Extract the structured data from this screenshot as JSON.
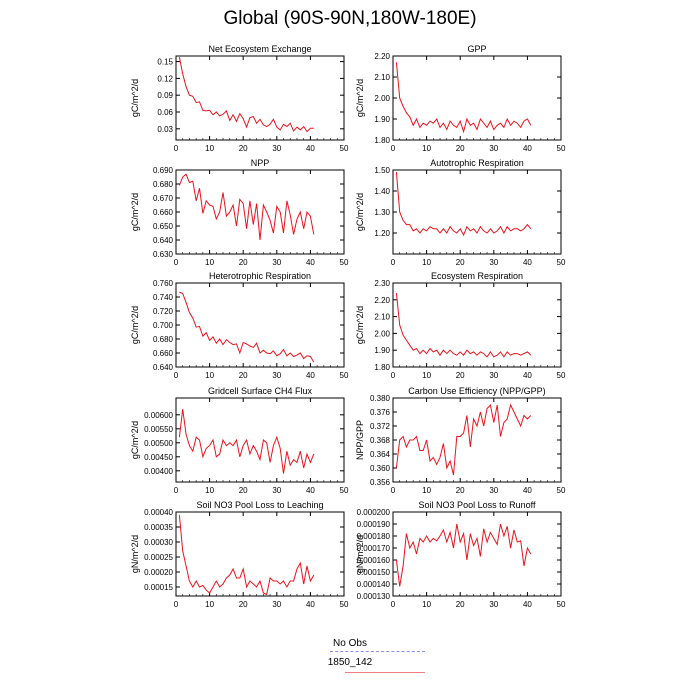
{
  "figure": {
    "title": "Global (90S-90N,180W-180E)",
    "series_color": "#e8141b",
    "obs_color": "#8a8ef0"
  },
  "legend": {
    "obs_label": "No Obs",
    "model_label": "1850_142"
  },
  "chart_data": [
    {
      "type": "line",
      "title": "Net Ecosystem Exchange",
      "ylabel": "gC/m^2/d",
      "xlim": [
        0,
        50
      ],
      "xticks": [
        0,
        10,
        20,
        30,
        40,
        50
      ],
      "ylim": [
        0.01,
        0.16
      ],
      "yticks": [
        0.03,
        0.06,
        0.09,
        0.12,
        0.15
      ],
      "ytick_labels": [
        "0.03",
        "0.06",
        "0.09",
        "0.12",
        "0.15"
      ],
      "x": [
        1,
        2,
        3,
        4,
        5,
        6,
        7,
        8,
        9,
        10,
        11,
        12,
        13,
        14,
        15,
        16,
        17,
        18,
        19,
        20,
        21,
        22,
        23,
        24,
        25,
        26,
        27,
        28,
        29,
        30,
        31,
        32,
        33,
        34,
        35,
        36,
        37,
        38,
        39,
        40,
        41
      ],
      "series": [
        {
          "values": [
            0.158,
            0.128,
            0.105,
            0.09,
            0.088,
            0.077,
            0.078,
            0.063,
            0.062,
            0.063,
            0.055,
            0.06,
            0.053,
            0.056,
            0.062,
            0.045,
            0.055,
            0.043,
            0.057,
            0.048,
            0.033,
            0.05,
            0.052,
            0.04,
            0.047,
            0.037,
            0.034,
            0.038,
            0.047,
            0.033,
            0.028,
            0.038,
            0.034,
            0.04,
            0.026,
            0.033,
            0.028,
            0.034,
            0.025,
            0.031,
            0.031
          ]
        }
      ]
    },
    {
      "type": "line",
      "title": "GPP",
      "ylabel": "gC/m^2/d",
      "xlim": [
        0,
        50
      ],
      "xticks": [
        0,
        10,
        20,
        30,
        40,
        50
      ],
      "ylim": [
        1.8,
        2.2
      ],
      "yticks": [
        1.8,
        1.9,
        2.0,
        2.1,
        2.2
      ],
      "ytick_labels": [
        "1.80",
        "1.90",
        "2.00",
        "2.10",
        "2.20"
      ],
      "x": [
        1,
        2,
        3,
        4,
        5,
        6,
        7,
        8,
        9,
        10,
        11,
        12,
        13,
        14,
        15,
        16,
        17,
        18,
        19,
        20,
        21,
        22,
        23,
        24,
        25,
        26,
        27,
        28,
        29,
        30,
        31,
        32,
        33,
        34,
        35,
        36,
        37,
        38,
        39,
        40,
        41
      ],
      "series": [
        {
          "values": [
            2.17,
            2.0,
            1.96,
            1.93,
            1.91,
            1.87,
            1.9,
            1.86,
            1.88,
            1.87,
            1.89,
            1.88,
            1.9,
            1.86,
            1.88,
            1.85,
            1.89,
            1.87,
            1.86,
            1.89,
            1.84,
            1.9,
            1.87,
            1.88,
            1.85,
            1.9,
            1.88,
            1.86,
            1.89,
            1.85,
            1.87,
            1.88,
            1.86,
            1.9,
            1.87,
            1.89,
            1.88,
            1.86,
            1.89,
            1.9,
            1.87
          ]
        }
      ]
    },
    {
      "type": "line",
      "title": "NPP",
      "ylabel": "gC/m^2/d",
      "xlim": [
        0,
        50
      ],
      "xticks": [
        0,
        10,
        20,
        30,
        40,
        50
      ],
      "ylim": [
        0.63,
        0.69
      ],
      "yticks": [
        0.63,
        0.64,
        0.65,
        0.66,
        0.67,
        0.68,
        0.69
      ],
      "ytick_labels": [
        "0.630",
        "0.640",
        "0.650",
        "0.660",
        "0.670",
        "0.680",
        "0.690"
      ],
      "x": [
        1,
        2,
        3,
        4,
        5,
        6,
        7,
        8,
        9,
        10,
        11,
        12,
        13,
        14,
        15,
        16,
        17,
        18,
        19,
        20,
        21,
        22,
        23,
        24,
        25,
        26,
        27,
        28,
        29,
        30,
        31,
        32,
        33,
        34,
        35,
        36,
        37,
        38,
        39,
        40,
        41
      ],
      "series": [
        {
          "values": [
            0.679,
            0.685,
            0.687,
            0.681,
            0.682,
            0.668,
            0.677,
            0.659,
            0.668,
            0.665,
            0.664,
            0.655,
            0.66,
            0.674,
            0.657,
            0.66,
            0.665,
            0.65,
            0.669,
            0.666,
            0.648,
            0.668,
            0.651,
            0.666,
            0.64,
            0.665,
            0.66,
            0.654,
            0.645,
            0.664,
            0.66,
            0.645,
            0.668,
            0.658,
            0.644,
            0.655,
            0.66,
            0.648,
            0.66,
            0.657,
            0.644
          ]
        }
      ]
    },
    {
      "type": "line",
      "title": "Autotrophic Respiration",
      "ylabel": "gC/m^2/d",
      "xlim": [
        0,
        50
      ],
      "xticks": [
        0,
        10,
        20,
        30,
        40,
        50
      ],
      "ylim": [
        1.1,
        1.5
      ],
      "yticks": [
        1.2,
        1.3,
        1.4,
        1.5
      ],
      "ytick_labels": [
        "1.20",
        "1.30",
        "1.40",
        "1.50"
      ],
      "x": [
        1,
        2,
        3,
        4,
        5,
        6,
        7,
        8,
        9,
        10,
        11,
        12,
        13,
        14,
        15,
        16,
        17,
        18,
        19,
        20,
        21,
        22,
        23,
        24,
        25,
        26,
        27,
        28,
        29,
        30,
        31,
        32,
        33,
        34,
        35,
        36,
        37,
        38,
        39,
        40,
        41
      ],
      "series": [
        {
          "values": [
            1.49,
            1.3,
            1.26,
            1.24,
            1.24,
            1.21,
            1.22,
            1.2,
            1.22,
            1.21,
            1.23,
            1.22,
            1.22,
            1.2,
            1.22,
            1.2,
            1.23,
            1.21,
            1.2,
            1.22,
            1.19,
            1.23,
            1.21,
            1.22,
            1.2,
            1.23,
            1.21,
            1.2,
            1.22,
            1.2,
            1.21,
            1.23,
            1.2,
            1.23,
            1.21,
            1.22,
            1.22,
            1.21,
            1.22,
            1.24,
            1.22
          ]
        }
      ]
    },
    {
      "type": "line",
      "title": "Heterotrophic Respiration",
      "ylabel": "gC/m^2/d",
      "xlim": [
        0,
        50
      ],
      "xticks": [
        0,
        10,
        20,
        30,
        40,
        50
      ],
      "ylim": [
        0.64,
        0.76
      ],
      "yticks": [
        0.64,
        0.66,
        0.68,
        0.7,
        0.72,
        0.74,
        0.76
      ],
      "ytick_labels": [
        "0.640",
        "0.660",
        "0.680",
        "0.700",
        "0.720",
        "0.740",
        "0.760"
      ],
      "x": [
        1,
        2,
        3,
        4,
        5,
        6,
        7,
        8,
        9,
        10,
        11,
        12,
        13,
        14,
        15,
        16,
        17,
        18,
        19,
        20,
        21,
        22,
        23,
        24,
        25,
        26,
        27,
        28,
        29,
        30,
        31,
        32,
        33,
        34,
        35,
        36,
        37,
        38,
        39,
        40,
        41
      ],
      "series": [
        {
          "values": [
            0.747,
            0.745,
            0.732,
            0.718,
            0.71,
            0.697,
            0.698,
            0.684,
            0.689,
            0.678,
            0.683,
            0.674,
            0.68,
            0.672,
            0.679,
            0.675,
            0.672,
            0.673,
            0.66,
            0.675,
            0.673,
            0.67,
            0.668,
            0.674,
            0.66,
            0.664,
            0.66,
            0.659,
            0.663,
            0.656,
            0.659,
            0.665,
            0.656,
            0.66,
            0.655,
            0.657,
            0.66,
            0.652,
            0.656,
            0.655,
            0.647
          ]
        }
      ]
    },
    {
      "type": "line",
      "title": "Ecosystem Respiration",
      "ylabel": "gC/m^2/d",
      "xlim": [
        0,
        50
      ],
      "xticks": [
        0,
        10,
        20,
        30,
        40,
        50
      ],
      "ylim": [
        1.8,
        2.3
      ],
      "yticks": [
        1.8,
        1.9,
        2.0,
        2.1,
        2.2,
        2.3
      ],
      "ytick_labels": [
        "1.80",
        "1.90",
        "2.00",
        "2.10",
        "2.20",
        "2.30"
      ],
      "x": [
        1,
        2,
        3,
        4,
        5,
        6,
        7,
        8,
        9,
        10,
        11,
        12,
        13,
        14,
        15,
        16,
        17,
        18,
        19,
        20,
        21,
        22,
        23,
        24,
        25,
        26,
        27,
        28,
        29,
        30,
        31,
        32,
        33,
        34,
        35,
        36,
        37,
        38,
        39,
        40,
        41
      ],
      "series": [
        {
          "values": [
            2.24,
            2.05,
            1.99,
            1.96,
            1.93,
            1.9,
            1.91,
            1.88,
            1.9,
            1.88,
            1.91,
            1.89,
            1.9,
            1.87,
            1.9,
            1.88,
            1.9,
            1.88,
            1.87,
            1.89,
            1.87,
            1.9,
            1.88,
            1.89,
            1.87,
            1.89,
            1.88,
            1.86,
            1.89,
            1.86,
            1.87,
            1.89,
            1.86,
            1.89,
            1.87,
            1.88,
            1.88,
            1.87,
            1.88,
            1.89,
            1.87
          ]
        }
      ]
    },
    {
      "type": "line",
      "title": "Gridcell Surface CH4 Flux",
      "ylabel": "gC/m^2/d",
      "xlim": [
        0,
        50
      ],
      "xticks": [
        0,
        10,
        20,
        30,
        40,
        50
      ],
      "ylim": [
        0.0036,
        0.0066
      ],
      "yticks": [
        0.004,
        0.0045,
        0.005,
        0.0055,
        0.006
      ],
      "ytick_labels": [
        "0.00400",
        "0.00450",
        "0.00500",
        "0.00550",
        "0.00600"
      ],
      "x": [
        1,
        2,
        3,
        4,
        5,
        6,
        7,
        8,
        9,
        10,
        11,
        12,
        13,
        14,
        15,
        16,
        17,
        18,
        19,
        20,
        21,
        22,
        23,
        24,
        25,
        26,
        27,
        28,
        29,
        30,
        31,
        32,
        33,
        34,
        35,
        36,
        37,
        38,
        39,
        40,
        41
      ],
      "series": [
        {
          "values": [
            0.0052,
            0.0062,
            0.0053,
            0.0049,
            0.0047,
            0.0052,
            0.0051,
            0.0045,
            0.0048,
            0.0049,
            0.0051,
            0.0045,
            0.0046,
            0.0051,
            0.0049,
            0.005,
            0.0049,
            0.0051,
            0.0045,
            0.0049,
            0.0051,
            0.0046,
            0.0049,
            0.0047,
            0.0044,
            0.0051,
            0.005,
            0.0043,
            0.0049,
            0.0052,
            0.0048,
            0.0039,
            0.0047,
            0.0042,
            0.0044,
            0.0043,
            0.0047,
            0.0041,
            0.0046,
            0.0043,
            0.0046
          ]
        }
      ]
    },
    {
      "type": "line",
      "title": "Carbon Use Efficiency (NPP/GPP)",
      "ylabel": "NPP/GPP",
      "xlim": [
        0,
        50
      ],
      "xticks": [
        0,
        10,
        20,
        30,
        40,
        50
      ],
      "ylim": [
        0.356,
        0.38
      ],
      "yticks": [
        0.356,
        0.36,
        0.364,
        0.368,
        0.372,
        0.376,
        0.38
      ],
      "ytick_labels": [
        "0.356",
        "0.360",
        "0.364",
        "0.368",
        "0.372",
        "0.376",
        "0.380"
      ],
      "x": [
        1,
        2,
        3,
        4,
        5,
        6,
        7,
        8,
        9,
        10,
        11,
        12,
        13,
        14,
        15,
        16,
        17,
        18,
        19,
        20,
        21,
        22,
        23,
        24,
        25,
        26,
        27,
        28,
        29,
        30,
        31,
        32,
        33,
        34,
        35,
        36,
        37,
        38,
        39,
        40,
        41
      ],
      "series": [
        {
          "values": [
            0.36,
            0.368,
            0.369,
            0.366,
            0.368,
            0.368,
            0.369,
            0.365,
            0.365,
            0.368,
            0.362,
            0.363,
            0.361,
            0.363,
            0.367,
            0.36,
            0.362,
            0.358,
            0.369,
            0.369,
            0.37,
            0.375,
            0.366,
            0.374,
            0.372,
            0.376,
            0.372,
            0.377,
            0.378,
            0.373,
            0.378,
            0.369,
            0.373,
            0.374,
            0.378,
            0.376,
            0.374,
            0.372,
            0.375,
            0.374,
            0.375
          ]
        }
      ]
    },
    {
      "type": "line",
      "title": "Soil NO3 Pool Loss to Leaching",
      "ylabel": "gN/m^2/d",
      "xlim": [
        0,
        50
      ],
      "xticks": [
        0,
        10,
        20,
        30,
        40,
        50
      ],
      "ylim": [
        0.00012,
        0.0004
      ],
      "yticks": [
        0.00015,
        0.0002,
        0.00025,
        0.0003,
        0.00035,
        0.0004
      ],
      "ytick_labels": [
        "0.00015",
        "0.00020",
        "0.00025",
        "0.00030",
        "0.00035",
        "0.00040"
      ],
      "x": [
        1,
        2,
        3,
        4,
        5,
        6,
        7,
        8,
        9,
        10,
        11,
        12,
        13,
        14,
        15,
        16,
        17,
        18,
        19,
        20,
        21,
        22,
        23,
        24,
        25,
        26,
        27,
        28,
        29,
        30,
        31,
        32,
        33,
        34,
        35,
        36,
        37,
        38,
        39,
        40,
        41
      ],
      "series": [
        {
          "values": [
            0.00039,
            0.00027,
            0.00022,
            0.00017,
            0.00015,
            0.00017,
            0.00015,
            0.000155,
            0.00014,
            0.00013,
            0.00015,
            0.00017,
            0.00015,
            0.00016,
            0.00018,
            0.00019,
            0.00021,
            0.00018,
            0.00018,
            0.00021,
            0.00015,
            0.00017,
            0.00016,
            0.00015,
            0.00017,
            0.00013,
            0.000125,
            0.00018,
            0.00017,
            0.00017,
            0.00016,
            0.00017,
            0.00015,
            0.00017,
            0.00017,
            0.00021,
            0.00023,
            0.00016,
            0.00022,
            0.00017,
            0.00019
          ]
        }
      ]
    },
    {
      "type": "line",
      "title": "Soil NO3 Pool Loss to Runoff",
      "ylabel": "gN/m^2/d",
      "xlim": [
        0,
        50
      ],
      "xticks": [
        0,
        10,
        20,
        30,
        40,
        50
      ],
      "ylim": [
        0.00013,
        0.0002
      ],
      "yticks": [
        0.00013,
        0.00014,
        0.00015,
        0.00016,
        0.00017,
        0.00018,
        0.00019,
        0.0002
      ],
      "ytick_labels": [
        "0.000130",
        "0.000140",
        "0.000150",
        "0.000160",
        "0.000170",
        "0.000180",
        "0.000190",
        "0.000200"
      ],
      "x": [
        1,
        2,
        3,
        4,
        5,
        6,
        7,
        8,
        9,
        10,
        11,
        12,
        13,
        14,
        15,
        16,
        17,
        18,
        19,
        20,
        21,
        22,
        23,
        24,
        25,
        26,
        27,
        28,
        29,
        30,
        31,
        32,
        33,
        34,
        35,
        36,
        37,
        38,
        39,
        40,
        41
      ],
      "series": [
        {
          "values": [
            0.00016,
            0.000138,
            0.000155,
            0.000182,
            0.00017,
            0.000175,
            0.000165,
            0.000178,
            0.000175,
            0.00018,
            0.000175,
            0.000178,
            0.000176,
            0.00018,
            0.000185,
            0.000175,
            0.000183,
            0.00017,
            0.00019,
            0.000175,
            0.000182,
            0.00016,
            0.000182,
            0.000172,
            0.000178,
            0.000163,
            0.000186,
            0.000175,
            0.000183,
            0.000178,
            0.000173,
            0.00019,
            0.00018,
            0.000188,
            0.00017,
            0.000185,
            0.000175,
            0.000176,
            0.000155,
            0.00017,
            0.000165
          ]
        }
      ]
    }
  ]
}
